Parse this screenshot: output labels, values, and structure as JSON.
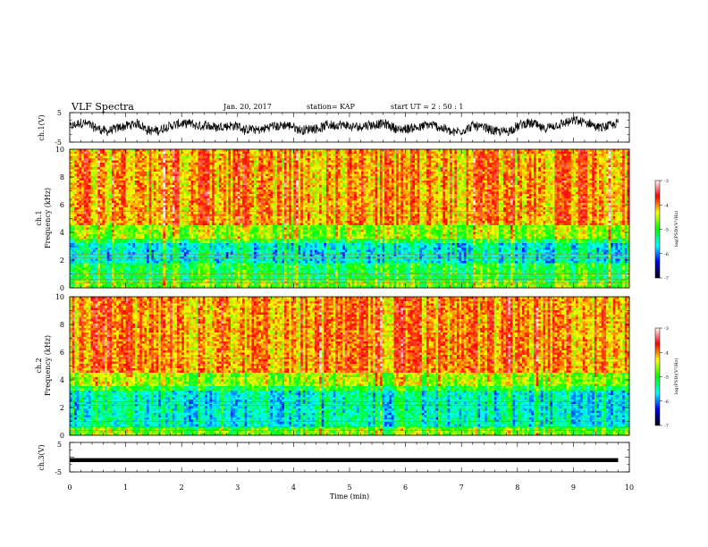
{
  "header": {
    "title": "VLF Spectra",
    "date": "Jan. 20, 2017",
    "station": "station= KAP",
    "start": "start  UT  =   2 : 50 : 1"
  },
  "colorbar": {
    "label": "log(PSD)(V²/Hz)",
    "ticks": [
      "-3",
      "-4",
      "-5",
      "-6",
      "-7"
    ],
    "colors": [
      "#000000",
      "#0000ff",
      "#00ffff",
      "#00ff00",
      "#ffff00",
      "#ff0000",
      "#ffffff"
    ]
  },
  "chart_data": [
    {
      "type": "line",
      "name": "ch.1 waveform",
      "ylabel": "ch.1(V)",
      "ylim": [
        -5,
        5
      ],
      "yticks": [
        "5",
        "-5"
      ],
      "xlim": [
        0,
        10
      ]
    },
    {
      "type": "heatmap",
      "name": "ch.1 spectrogram",
      "ylabel_top": "ch.1",
      "ylabel": "Frequency (kHz)",
      "ylim": [
        0,
        10
      ],
      "yticks": [
        "0",
        "2",
        "4",
        "6",
        "8",
        "10"
      ],
      "xlim": [
        0,
        10
      ],
      "zrange": [
        -7,
        -3
      ]
    },
    {
      "type": "heatmap",
      "name": "ch.2 spectrogram",
      "ylabel_top": "ch.2",
      "ylabel": "Frequency (kHz)",
      "ylim": [
        0,
        10
      ],
      "yticks": [
        "0",
        "2",
        "4",
        "6",
        "8",
        "10"
      ],
      "xlim": [
        0,
        10
      ],
      "zrange": [
        -7,
        -3
      ]
    },
    {
      "type": "line",
      "name": "ch.3 waveform",
      "ylabel": "ch.3(V)",
      "ylim": [
        -5,
        5
      ],
      "yticks": [
        "5",
        "-5"
      ],
      "xlim": [
        0,
        10
      ],
      "xlabel": "Time (min)",
      "xticks": [
        "0",
        "1",
        "2",
        "3",
        "4",
        "5",
        "6",
        "7",
        "8",
        "9",
        "10"
      ],
      "data_xmax": 9.8,
      "level": -1
    }
  ]
}
